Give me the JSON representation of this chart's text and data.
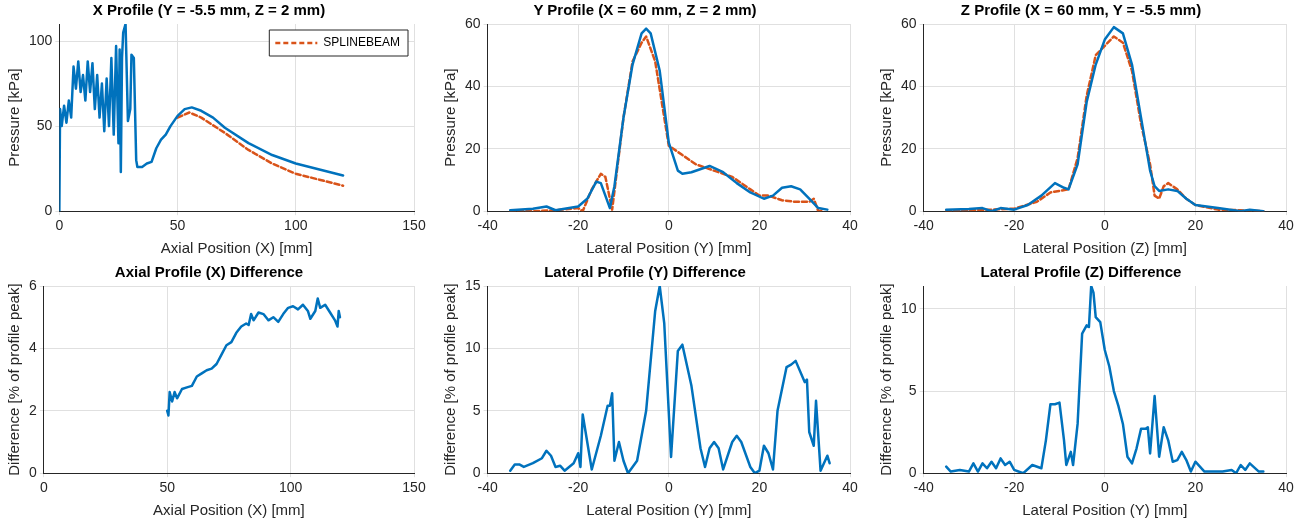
{
  "chart_data": [
    {
      "type": "line",
      "title": "X Profile (Y = -5.5 mm, Z = 2 mm)",
      "xlabel": "Axial Position (X) [mm]",
      "ylabel": "Pressure [kPa]",
      "xlim": [
        0,
        150
      ],
      "xticks": [
        0,
        50,
        100,
        150
      ],
      "ylim": [
        0,
        110
      ],
      "yticks": [
        0,
        50,
        100
      ],
      "grid": true,
      "legend": "top right",
      "series": [
        {
          "color": "#0072bd",
          "line_style": "solid",
          "x": [
            0,
            0.3,
            1,
            2,
            3,
            4,
            5,
            6,
            7,
            8,
            9,
            10,
            11,
            12,
            13,
            14,
            15,
            16,
            17,
            18,
            19,
            20,
            21,
            22,
            23,
            24,
            25,
            25.5,
            26,
            26.5,
            27,
            28,
            29,
            30,
            30.5,
            31.5,
            32.5,
            33,
            35,
            37,
            39,
            41,
            43,
            45,
            47,
            50,
            53,
            56,
            60,
            65,
            70,
            80,
            90,
            100,
            110,
            120
          ],
          "values": [
            0,
            60,
            50,
            62,
            52,
            65,
            55,
            85,
            72,
            88,
            70,
            80,
            65,
            88,
            70,
            87,
            60,
            80,
            55,
            75,
            47,
            78,
            50,
            90,
            45,
            97,
            40,
            95,
            23,
            90,
            105,
            110,
            53,
            60,
            92,
            90,
            30,
            26,
            26,
            28,
            29,
            37,
            42,
            45,
            50,
            56,
            60,
            61,
            59,
            55,
            49,
            40,
            33,
            28,
            24.5,
            21
          ]
        },
        {
          "name": "SPLINEBEAM",
          "color": "#d95319",
          "line_style": "dashed",
          "x": [
            50,
            55,
            60,
            70,
            80,
            90,
            100,
            110,
            120
          ],
          "values": [
            55,
            58,
            55,
            46,
            36,
            28,
            22,
            18.5,
            15
          ]
        }
      ]
    },
    {
      "type": "line",
      "title": "Y Profile (X = 60 mm, Z = 2 mm)",
      "xlabel": "Lateral Position (Y) [mm]",
      "ylabel": "Pressure [kPa]",
      "xlim": [
        -40,
        40
      ],
      "xticks": [
        -40,
        -20,
        0,
        20,
        40
      ],
      "ylim": [
        0,
        60
      ],
      "yticks": [
        0,
        20,
        40,
        60
      ],
      "grid": true,
      "series": [
        {
          "color": "#0072bd",
          "line_style": "solid",
          "x": [
            -35,
            -30,
            -27,
            -25,
            -20,
            -18,
            -16,
            -15,
            -13,
            -12,
            -10,
            -8,
            -6,
            -5,
            -4,
            -2,
            0,
            2,
            3,
            5,
            9,
            12,
            15,
            18,
            21,
            23,
            25,
            27,
            29,
            31,
            33,
            35
          ],
          "values": [
            0.3,
            0.8,
            1.5,
            0.3,
            1.5,
            4,
            9.5,
            9,
            1,
            8,
            30,
            47,
            57,
            58.5,
            57,
            45,
            22,
            13,
            12,
            12.5,
            14.5,
            12.5,
            9,
            6,
            4,
            5,
            7.5,
            8,
            7,
            4,
            1,
            0.5
          ]
        },
        {
          "color": "#d95319",
          "line_style": "dashed",
          "x": [
            -35,
            -30,
            -25,
            -20,
            -19,
            -17,
            -15,
            -14,
            -13,
            -12.5,
            -10,
            -8,
            -6,
            -5,
            -3,
            -1,
            0,
            3,
            6,
            10,
            14,
            18,
            20,
            22,
            25,
            28,
            31,
            32,
            33,
            34
          ],
          "values": [
            0,
            0,
            0.3,
            1,
            0,
            7,
            12,
            11,
            4,
            0.5,
            30,
            48,
            54,
            56,
            48,
            30,
            21,
            18,
            15,
            13,
            11,
            7,
            5,
            5,
            3.5,
            3,
            3,
            4,
            0,
            0.3
          ]
        }
      ]
    },
    {
      "type": "line",
      "title": "Z Profile (X = 60 mm, Y = -5.5 mm)",
      "xlabel": "Lateral Position (Z) [mm]",
      "ylabel": "Pressure [kPa]",
      "xlim": [
        -40,
        40
      ],
      "xticks": [
        -40,
        -20,
        0,
        20,
        40
      ],
      "ylim": [
        0,
        60
      ],
      "yticks": [
        0,
        20,
        40,
        60
      ],
      "grid": true,
      "series": [
        {
          "color": "#0072bd",
          "line_style": "solid",
          "x": [
            -35,
            -30,
            -27,
            -25,
            -23,
            -20,
            -17,
            -14,
            -11,
            -9,
            -8,
            -6,
            -4,
            -2,
            0,
            2,
            4,
            6,
            8,
            10,
            11,
            12,
            14,
            16,
            18,
            20,
            25,
            30,
            32,
            35
          ],
          "values": [
            0.5,
            0.7,
            1,
            0,
            1,
            0.5,
            2,
            5,
            9,
            7.5,
            7,
            15,
            35,
            47,
            55,
            59,
            57,
            47,
            30,
            13,
            8,
            6.5,
            7,
            6.5,
            4,
            2,
            1,
            0,
            0.5,
            0
          ]
        },
        {
          "color": "#d95319",
          "line_style": "dashed",
          "x": [
            -35,
            -30,
            -25,
            -20,
            -15,
            -12,
            -10,
            -8,
            -6,
            -4,
            -2,
            0,
            2,
            4,
            6,
            8,
            10,
            11,
            12,
            13,
            14,
            16,
            18,
            20,
            25,
            30,
            35
          ],
          "values": [
            0,
            0.3,
            0.5,
            0.8,
            3,
            6,
            6.5,
            7,
            17,
            37,
            50,
            53,
            56,
            54,
            45,
            28,
            15,
            5,
            4,
            8,
            9,
            7,
            4,
            2,
            0.5,
            0.3,
            0
          ]
        }
      ]
    },
    {
      "type": "line",
      "title": "Axial Profile (X) Difference",
      "xlabel": "Axial Position (X) [mm]",
      "ylabel": "Difference [% of profile peak]",
      "xlim": [
        0,
        150
      ],
      "xticks": [
        0,
        50,
        100,
        150
      ],
      "ylim": [
        0,
        6
      ],
      "yticks": [
        0,
        2,
        4,
        6
      ],
      "grid": true,
      "series": [
        {
          "color": "#0072bd",
          "line_style": "solid",
          "x": [
            50,
            50.5,
            51,
            52,
            53,
            54,
            56,
            58,
            60,
            62,
            64,
            66,
            68,
            70,
            72,
            74,
            76,
            78,
            80,
            82,
            83,
            84,
            85,
            87,
            89,
            91,
            93,
            95,
            97,
            99,
            101,
            103,
            105,
            107,
            108,
            110,
            111,
            112,
            114,
            116,
            118,
            119,
            119.5,
            120
          ],
          "values": [
            2,
            1.85,
            2.6,
            2.3,
            2.6,
            2.4,
            2.7,
            2.75,
            2.8,
            3.1,
            3.2,
            3.3,
            3.35,
            3.5,
            3.8,
            4.1,
            4.2,
            4.5,
            4.7,
            4.8,
            4.75,
            5.1,
            4.9,
            5.15,
            5.1,
            4.9,
            5,
            4.85,
            5.1,
            5.3,
            5.35,
            5.25,
            5.4,
            5.2,
            4.95,
            5.2,
            5.6,
            5.3,
            5.4,
            5.15,
            4.9,
            4.7,
            5.2,
            5
          ]
        }
      ]
    },
    {
      "type": "line",
      "title": "Lateral Profile (Y) Difference",
      "xlabel": "Lateral Position (Y) [mm]",
      "ylabel": "Difference [% of profile peak]",
      "xlim": [
        -40,
        40
      ],
      "xticks": [
        -40,
        -20,
        0,
        20,
        40
      ],
      "ylim": [
        0,
        15
      ],
      "yticks": [
        0,
        5,
        10,
        15
      ],
      "grid": true,
      "series": [
        {
          "color": "#0072bd",
          "line_style": "solid",
          "x": [
            -35,
            -34,
            -33,
            -32,
            -30,
            -28,
            -27,
            -26,
            -25,
            -24,
            -23,
            -21,
            -20,
            -19.5,
            -19,
            -17,
            -15,
            -13.5,
            -13,
            -12.5,
            -12,
            -11,
            -10,
            -9,
            -8,
            -7,
            -5,
            -3,
            -2,
            -1,
            0.5,
            2,
            3,
            5,
            7,
            8,
            9,
            10,
            11,
            12,
            14,
            15,
            16,
            18,
            19,
            20,
            21,
            22,
            23,
            24,
            26,
            27,
            28,
            30,
            30.5,
            31,
            32,
            32.5,
            33.5,
            35,
            35.5
          ],
          "values": [
            0.2,
            0.7,
            0.7,
            0.5,
            0.8,
            1.2,
            1.8,
            1.4,
            0.5,
            0.6,
            0.2,
            0.8,
            1.6,
            0.5,
            4.7,
            0.3,
            3,
            5.4,
            5.4,
            6.4,
            1,
            2.5,
            1,
            0,
            0.5,
            1,
            5,
            13,
            15,
            12,
            1.3,
            9.8,
            10.3,
            7,
            2,
            0.5,
            2,
            2.5,
            2,
            0.3,
            2.5,
            3,
            2.5,
            0.5,
            0,
            0.2,
            2.2,
            1.6,
            0.3,
            5,
            8.5,
            8.7,
            9,
            7.3,
            7.5,
            3.3,
            2.2,
            5.8,
            0.2,
            1.4,
            0.8
          ]
        }
      ]
    },
    {
      "type": "line",
      "title": "Lateral Profile (Z) Difference",
      "xlabel": "Lateral Position (Y) [mm]",
      "ylabel": "Difference [% of profile peak]",
      "xlim": [
        -40,
        40
      ],
      "xticks": [
        -40,
        -20,
        0,
        20,
        40
      ],
      "ylim": [
        0,
        11.4
      ],
      "yticks": [
        0,
        5,
        10
      ],
      "grid": true,
      "series": [
        {
          "color": "#0072bd",
          "line_style": "solid",
          "x": [
            -35,
            -34,
            -32,
            -30,
            -29,
            -28,
            -27,
            -26,
            -25,
            -24,
            -23,
            -22,
            -21,
            -20,
            -18,
            -16,
            -14,
            -13,
            -12,
            -11,
            -10,
            -9,
            -8.5,
            -7.5,
            -7,
            -6,
            -5,
            -4,
            -3.5,
            -3,
            -2.5,
            -2,
            -1,
            0,
            1,
            2,
            3,
            4,
            5,
            6,
            7,
            8,
            9,
            9.5,
            10,
            11,
            12,
            13,
            14,
            15,
            16,
            17,
            18,
            19,
            20,
            22,
            24,
            26,
            28,
            29,
            30,
            31,
            32,
            34,
            35
          ],
          "values": [
            0.4,
            0.1,
            0.2,
            0.1,
            0.6,
            0.1,
            0.6,
            0.3,
            0.7,
            0.3,
            0.9,
            0.5,
            0.7,
            0.2,
            0,
            0.5,
            0.3,
            2,
            4.2,
            4.2,
            4.3,
            2,
            0.5,
            1.3,
            0.5,
            3,
            8.5,
            9,
            8.9,
            11.4,
            11,
            9.5,
            9.2,
            7.5,
            6.5,
            5,
            4.1,
            3,
            1,
            0.6,
            1.5,
            2.7,
            2.7,
            2.8,
            1.2,
            4.7,
            1,
            2.8,
            2,
            0.7,
            0.8,
            1.3,
            0.8,
            0.1,
            0.7,
            0.1,
            0.1,
            0.1,
            0.2,
            0,
            0.5,
            0.2,
            0.6,
            0.1,
            0.1
          ]
        }
      ]
    }
  ]
}
